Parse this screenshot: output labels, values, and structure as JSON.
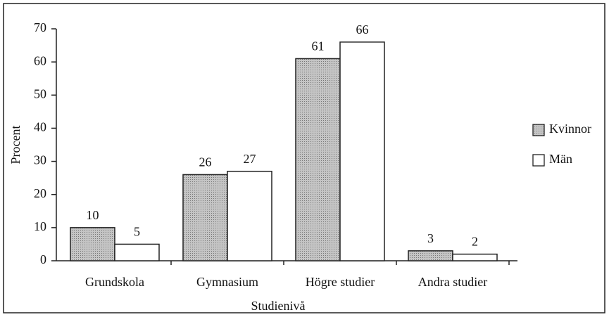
{
  "chart_data": {
    "type": "bar",
    "xlabel": "Studienivå",
    "ylabel": "Procent",
    "categories": [
      "Grundskola",
      "Gymnasium",
      "Högre studier",
      "Andra studier"
    ],
    "series": [
      {
        "name": "Kvinnor",
        "color": "#b5b5b5",
        "values": [
          10,
          26,
          61,
          3
        ]
      },
      {
        "name": "Män",
        "color": "#ffffff",
        "values": [
          5,
          27,
          66,
          2
        ]
      }
    ],
    "ylim": [
      0,
      70
    ],
    "yticks": [
      0,
      10,
      20,
      30,
      40,
      50,
      60,
      70
    ],
    "legend": "right"
  }
}
